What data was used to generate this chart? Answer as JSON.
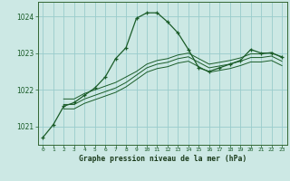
{
  "title": "Graphe pression niveau de la mer (hPa)",
  "bg_color": "#cce8e4",
  "grid_color": "#99cccc",
  "line_color": "#1a5c28",
  "xlim": [
    -0.5,
    23.5
  ],
  "ylim": [
    1020.5,
    1024.4
  ],
  "yticks": [
    1021,
    1022,
    1023,
    1024
  ],
  "xticks": [
    0,
    1,
    2,
    3,
    4,
    5,
    6,
    7,
    8,
    9,
    10,
    11,
    12,
    13,
    14,
    15,
    16,
    17,
    18,
    19,
    20,
    21,
    22,
    23
  ],
  "lines": [
    {
      "x": [
        0,
        1,
        2,
        3,
        4,
        5,
        6,
        7,
        8,
        9,
        10,
        11,
        12,
        13,
        14,
        15,
        16,
        17,
        18,
        19,
        20,
        21,
        22,
        23
      ],
      "y": [
        1020.7,
        1021.05,
        1021.55,
        1021.65,
        1021.85,
        1022.05,
        1022.35,
        1022.85,
        1023.15,
        1023.95,
        1024.1,
        1024.1,
        1023.85,
        1023.55,
        1023.1,
        1022.6,
        1022.5,
        1022.6,
        1022.7,
        1022.8,
        1023.1,
        1023.0,
        1023.0,
        1022.9
      ],
      "with_markers": true
    },
    {
      "x": [
        2,
        3,
        4,
        5,
        6,
        7,
        8,
        9,
        10,
        11,
        12,
        13,
        14,
        15,
        16,
        17,
        18,
        19,
        20,
        21,
        22,
        23
      ],
      "y": [
        1021.75,
        1021.75,
        1021.9,
        1022.0,
        1022.1,
        1022.2,
        1022.35,
        1022.5,
        1022.7,
        1022.8,
        1022.85,
        1022.95,
        1023.0,
        1022.85,
        1022.7,
        1022.75,
        1022.8,
        1022.87,
        1022.98,
        1022.98,
        1023.02,
        1022.88
      ],
      "with_markers": false
    },
    {
      "x": [
        2,
        3,
        4,
        5,
        6,
        7,
        8,
        9,
        10,
        11,
        12,
        13,
        14,
        15,
        16,
        17,
        18,
        19,
        20,
        21,
        22,
        23
      ],
      "y": [
        1021.6,
        1021.6,
        1021.75,
        1021.85,
        1021.95,
        1022.05,
        1022.2,
        1022.4,
        1022.6,
        1022.7,
        1022.75,
        1022.85,
        1022.9,
        1022.75,
        1022.6,
        1022.65,
        1022.7,
        1022.78,
        1022.88,
        1022.88,
        1022.92,
        1022.78
      ],
      "with_markers": false
    },
    {
      "x": [
        2,
        3,
        4,
        5,
        6,
        7,
        8,
        9,
        10,
        11,
        12,
        13,
        14,
        15,
        16,
        17,
        18,
        19,
        20,
        21,
        22,
        23
      ],
      "y": [
        1021.48,
        1021.48,
        1021.63,
        1021.73,
        1021.83,
        1021.93,
        1022.08,
        1022.28,
        1022.48,
        1022.58,
        1022.63,
        1022.73,
        1022.78,
        1022.63,
        1022.48,
        1022.53,
        1022.58,
        1022.66,
        1022.76,
        1022.76,
        1022.8,
        1022.66
      ],
      "with_markers": false
    }
  ]
}
